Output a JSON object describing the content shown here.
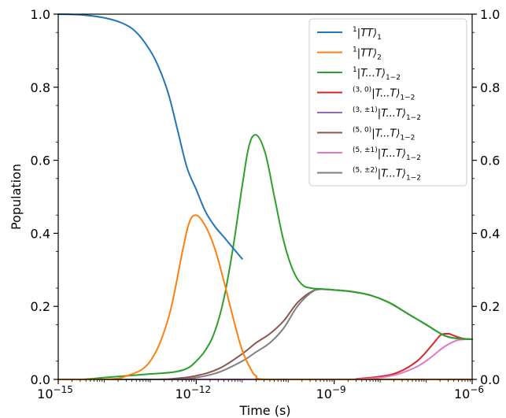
{
  "chart_data": {
    "type": "line",
    "xlabel": "Time (s)",
    "ylabel": "Population",
    "xscale": "log",
    "xlim": [
      1e-15,
      1e-06
    ],
    "ylim": [
      0,
      1.0
    ],
    "legend_placement": "top-right",
    "grid": false,
    "x_tick_labels": [
      {
        "base": "10",
        "exp": "−15",
        "value": 1e-15
      },
      {
        "base": "10",
        "exp": "−12",
        "value": 1e-12
      },
      {
        "base": "10",
        "exp": "−9",
        "value": 1e-09
      },
      {
        "base": "10",
        "exp": "−6",
        "value": 1e-06
      }
    ],
    "y_tick_labels": [
      "0.0",
      "0.2",
      "0.4",
      "0.6",
      "0.8",
      "1.0"
    ],
    "right_y_tick_labels": [
      "0.0",
      "0.2",
      "0.4",
      "0.6",
      "0.8",
      "1.0"
    ],
    "series": [
      {
        "name": "¹|TT⟩₁",
        "label_parts": {
          "sup": "1",
          "body": "|TT⟩",
          "sub": "1"
        },
        "color": "#1f77b4",
        "x_log10": [
          -15,
          -14.5,
          -14,
          -13.6,
          -13.3,
          -13.0,
          -12.8,
          -12.6,
          -12.4,
          -12.2,
          -12.0,
          -11.8,
          -11.6,
          -11.4,
          -11.2,
          -11.0
        ],
        "y": [
          1.0,
          0.998,
          0.99,
          0.975,
          0.95,
          0.9,
          0.85,
          0.78,
          0.68,
          0.58,
          0.52,
          0.46,
          0.42,
          0.39,
          0.36,
          0.33
        ]
      },
      {
        "name": "¹|TT⟩₂",
        "label_parts": {
          "sup": "1",
          "body": "|TT⟩",
          "sub": "2"
        },
        "color": "#ff7f0e",
        "x_log10": [
          -15,
          -14,
          -13.5,
          -13.0,
          -12.6,
          -12.3,
          -12.15,
          -12.0,
          -11.8,
          -11.6,
          -11.4,
          -11.2,
          -11.0,
          -10.8,
          -10.7,
          -10.5,
          -9.0,
          -6.0
        ],
        "y": [
          0.0,
          0.0,
          0.01,
          0.05,
          0.17,
          0.35,
          0.43,
          0.45,
          0.42,
          0.36,
          0.27,
          0.17,
          0.08,
          0.025,
          0.01,
          0.0,
          0.0,
          0.0
        ]
      },
      {
        "name": "¹|T...T⟩₁₋₂",
        "label_parts": {
          "sup": "1",
          "body": "|T...T⟩",
          "sub": "1−2"
        },
        "color": "#2ca02c",
        "x_log10": [
          -15,
          -14.5,
          -14,
          -13.5,
          -13.0,
          -12.5,
          -12.2,
          -12.0,
          -11.8,
          -11.6,
          -11.4,
          -11.2,
          -11.0,
          -10.85,
          -10.7,
          -10.5,
          -10.3,
          -10.1,
          -9.9,
          -9.7,
          -9.5,
          -9.3,
          -9.0,
          -8.6,
          -8.2,
          -7.8,
          -7.4,
          -7.0,
          -6.6,
          -6.3,
          -6.0
        ],
        "y": [
          0.0,
          0.0,
          0.005,
          0.01,
          0.015,
          0.02,
          0.03,
          0.05,
          0.08,
          0.13,
          0.22,
          0.36,
          0.53,
          0.64,
          0.67,
          0.62,
          0.5,
          0.38,
          0.3,
          0.26,
          0.25,
          0.248,
          0.245,
          0.24,
          0.23,
          0.21,
          0.18,
          0.15,
          0.12,
          0.112,
          0.11
        ]
      },
      {
        "name": "⁽³,⁰⁾|T...T⟩₁₋₂",
        "label_parts": {
          "sup": "(3, 0)",
          "body": "|T...T⟩",
          "sub": "1−2"
        },
        "color": "#d62728",
        "x_log10": [
          -15,
          -9.0,
          -8.5,
          -8.0,
          -7.6,
          -7.2,
          -6.9,
          -6.7,
          -6.6,
          -6.5,
          -6.4,
          -6.2,
          -6.0
        ],
        "y": [
          0.0,
          0.0,
          0.002,
          0.008,
          0.02,
          0.05,
          0.09,
          0.12,
          0.125,
          0.125,
          0.12,
          0.112,
          0.11
        ]
      },
      {
        "name": "⁽³,±¹⁾|T...T⟩₁₋₂",
        "label_parts": {
          "sup": "(3, ±1)",
          "body": "|T...T⟩",
          "sub": "1−2"
        },
        "color": "#9467bd",
        "x_log10": [
          -15,
          -6.0
        ],
        "y": [
          0.0,
          0.0
        ]
      },
      {
        "name": "⁽⁵,⁰⁾|T...T⟩₁₋₂",
        "label_parts": {
          "sup": "(5, 0)",
          "body": "|T...T⟩",
          "sub": "1−2"
        },
        "color": "#8c564b",
        "x_log10": [
          -15,
          -13,
          -12.5,
          -12.0,
          -11.5,
          -11.0,
          -10.7,
          -10.4,
          -10.1,
          -9.8,
          -9.5,
          -9.3,
          -9.0,
          -8.6,
          -8.2,
          -7.8,
          -7.4,
          -7.0,
          -6.6,
          -6.3,
          -6.0
        ],
        "y": [
          0.0,
          0.0,
          0.002,
          0.01,
          0.03,
          0.07,
          0.1,
          0.125,
          0.16,
          0.21,
          0.24,
          0.247,
          0.245,
          0.24,
          0.23,
          0.21,
          0.18,
          0.15,
          0.12,
          0.112,
          0.11
        ]
      },
      {
        "name": "⁽⁵,±¹⁾|T...T⟩₁₋₂",
        "label_parts": {
          "sup": "(5, ±1)",
          "body": "|T...T⟩",
          "sub": "1−2"
        },
        "color": "#e377c2",
        "x_log10": [
          -15,
          -9.0,
          -8.5,
          -8.0,
          -7.6,
          -7.2,
          -6.9,
          -6.6,
          -6.3,
          -6.0
        ],
        "y": [
          0.0,
          0.0,
          0.001,
          0.005,
          0.015,
          0.035,
          0.06,
          0.09,
          0.108,
          0.11
        ]
      },
      {
        "name": "⁽⁵,±²⁾|T...T⟩₁₋₂",
        "label_parts": {
          "sup": "(5, ±2)",
          "body": "|T...T⟩",
          "sub": "1−2"
        },
        "color": "#7f7f7f",
        "x_log10": [
          -15,
          -13,
          -12.5,
          -12.0,
          -11.5,
          -11.0,
          -10.7,
          -10.4,
          -10.1,
          -9.8,
          -9.5,
          -9.3,
          -9.0,
          -8.6,
          -8.2,
          -7.8,
          -7.4,
          -7.0,
          -6.6,
          -6.3,
          -6.0
        ],
        "y": [
          0.0,
          0.0,
          0.0,
          0.005,
          0.02,
          0.05,
          0.075,
          0.1,
          0.14,
          0.2,
          0.238,
          0.247,
          0.245,
          0.24,
          0.23,
          0.21,
          0.18,
          0.15,
          0.12,
          0.112,
          0.11
        ]
      }
    ]
  }
}
